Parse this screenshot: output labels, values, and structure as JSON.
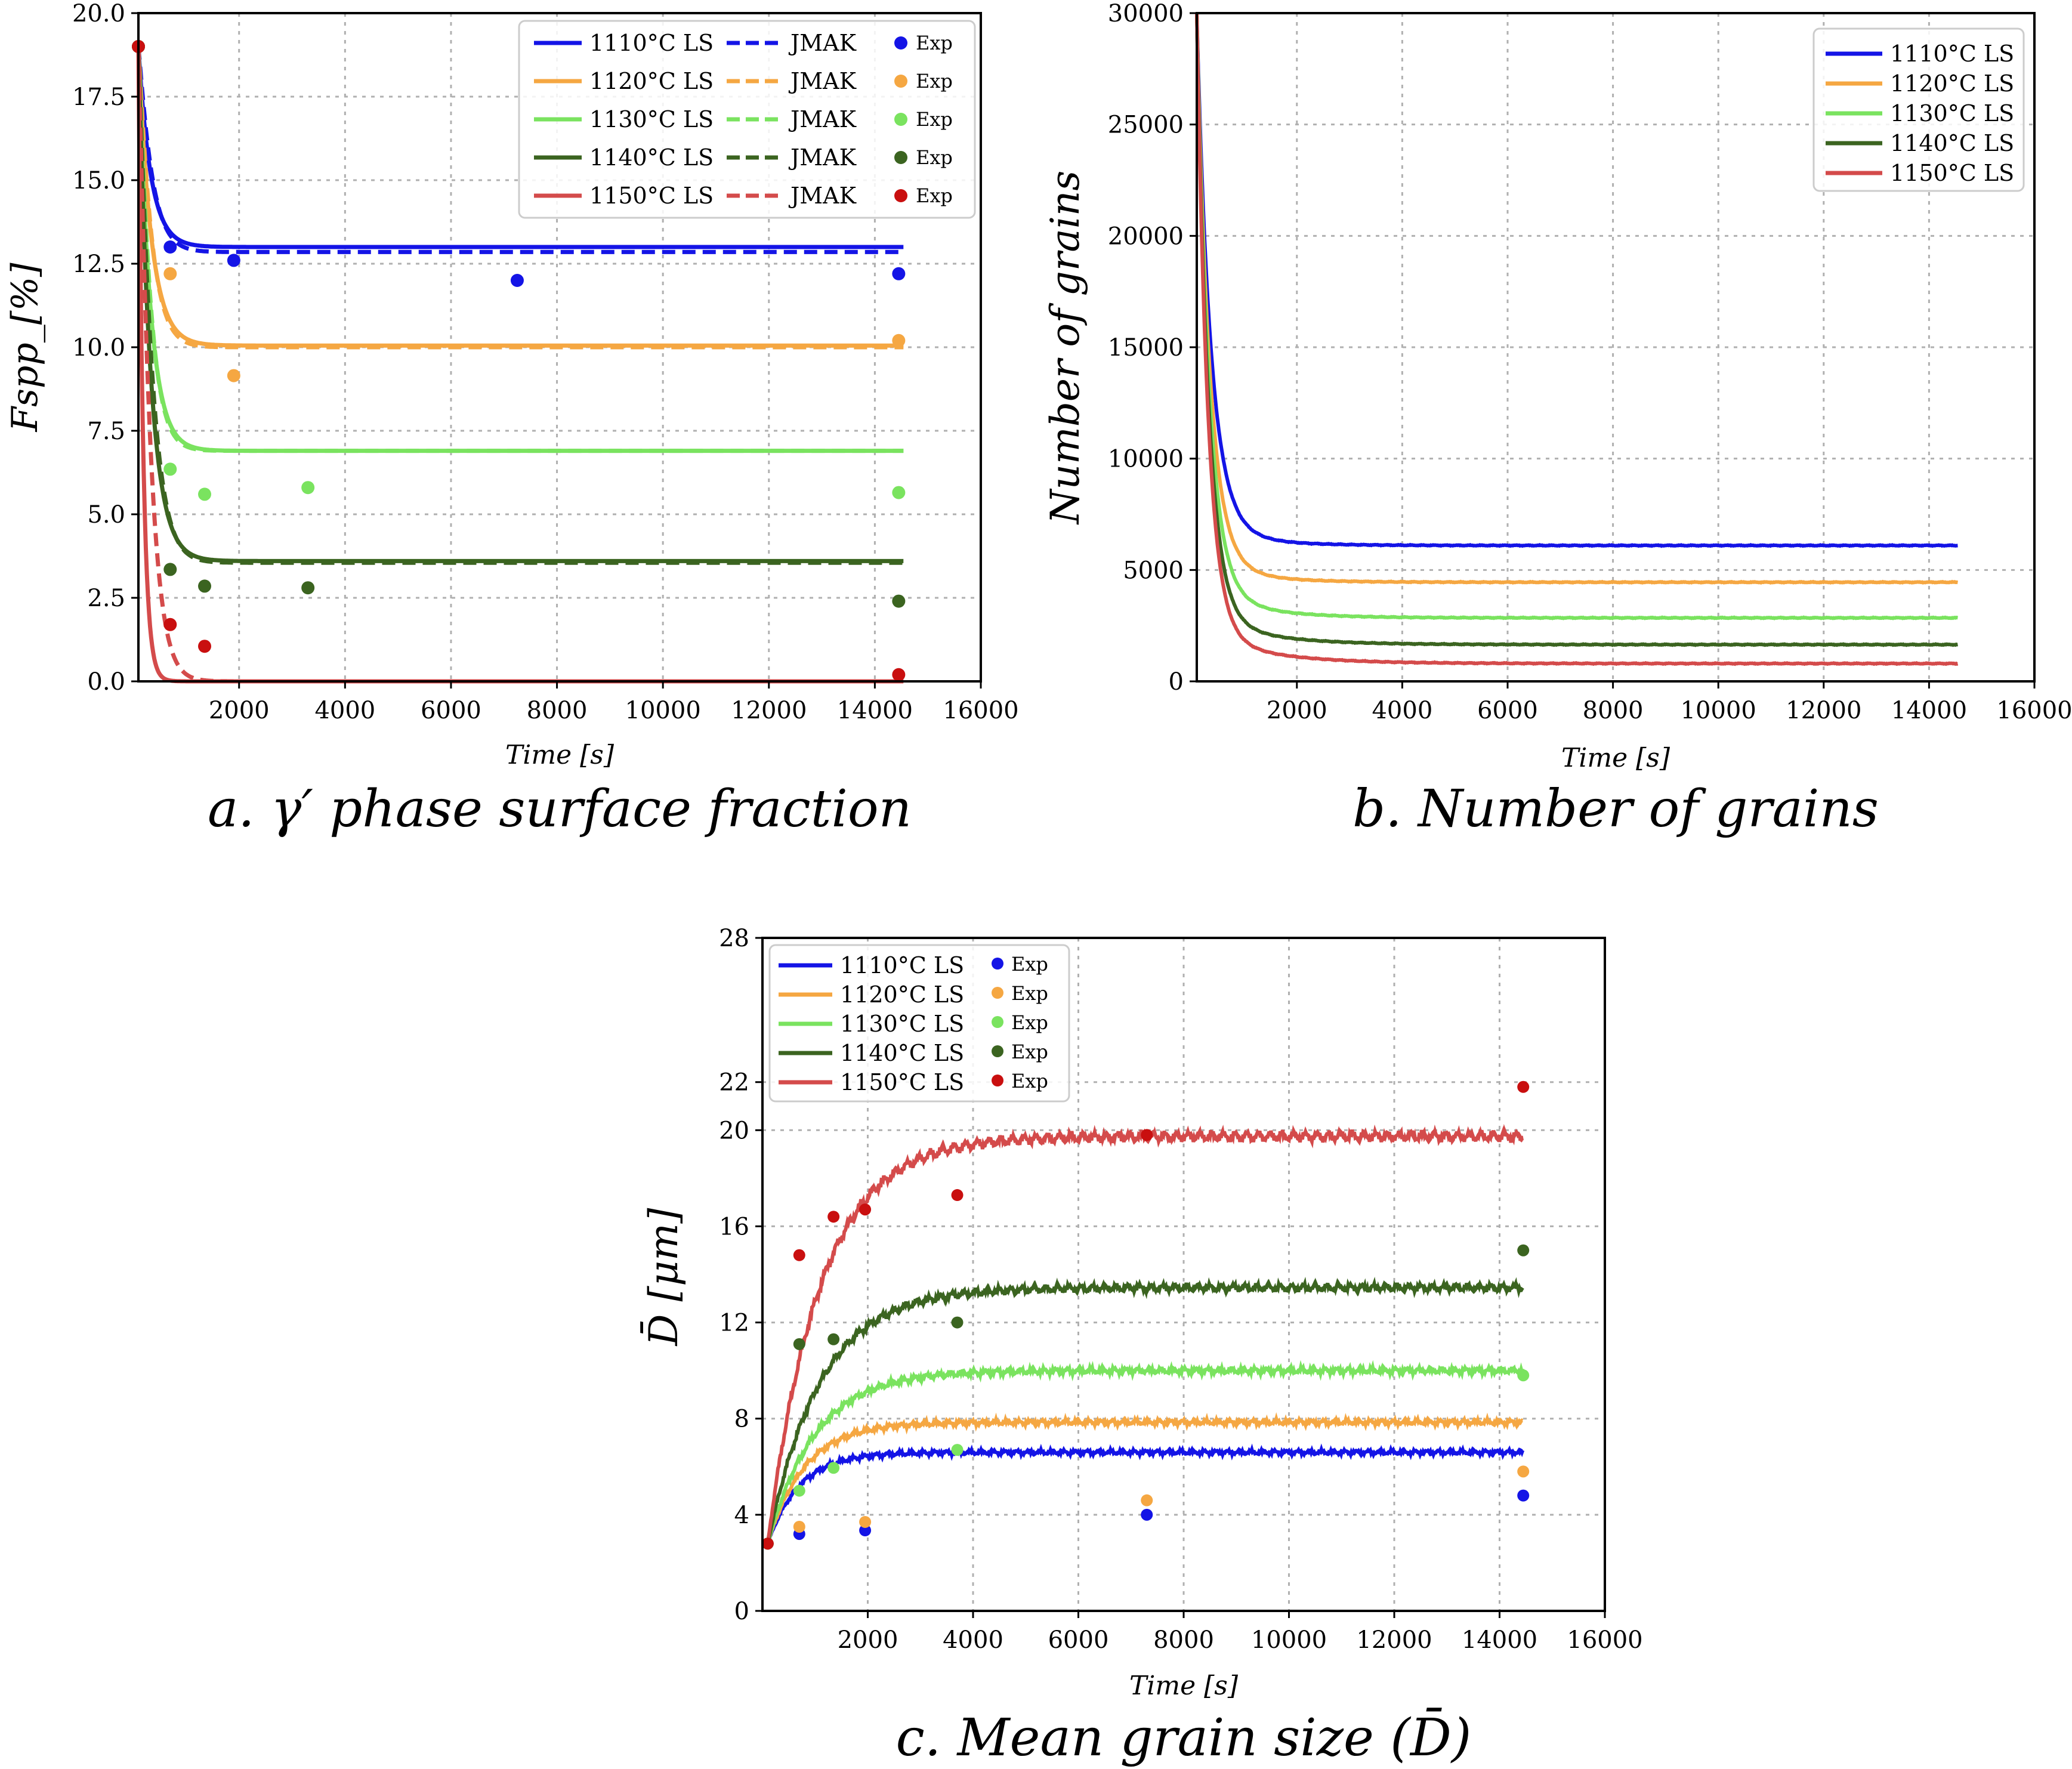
{
  "colors": {
    "1110": "#1414e6",
    "1120": "#f5a742",
    "1130": "#7ae35f",
    "1140": "#3b6420",
    "1150": "#d44b4b",
    "1150_exp": "#c90f0f"
  },
  "chart_data": [
    {
      "id": "a",
      "type": "line",
      "caption": "a. γ′ phase surface fraction",
      "xlabel": "Time [s]",
      "ylabel": "Fspp_[%]",
      "xlim": [
        100,
        16000
      ],
      "ylim": [
        0,
        20
      ],
      "xticks": [
        2000,
        4000,
        6000,
        8000,
        10000,
        12000,
        14000,
        16000
      ],
      "yticks": [
        0.0,
        2.5,
        5.0,
        7.5,
        10.0,
        12.5,
        15.0,
        17.5,
        20.0
      ],
      "ytick_labels": [
        "0.0",
        "2.5",
        "5.0",
        "7.5",
        "10.0",
        "12.5",
        "15.0",
        "17.5",
        "20.0"
      ],
      "xtick_labels": [
        "2000",
        "4000",
        "6000",
        "8000",
        "10000",
        "12000",
        "14000",
        "16000"
      ],
      "legend_position": "top-right",
      "series": [
        {
          "key": "1110",
          "name": "1110°C LS",
          "jmak_name": "JMAK",
          "exp_name": "Exp",
          "start": 19.0,
          "plateau": 13.0,
          "tau": 230,
          "jmak_plateau": 12.85,
          "jmak_tau": 260,
          "exp": [
            [
              100,
              19.0
            ],
            [
              700,
              13.0
            ],
            [
              1900,
              12.6
            ],
            [
              7250,
              12.0
            ],
            [
              14450,
              12.2
            ]
          ]
        },
        {
          "key": "1120",
          "name": "1120°C LS",
          "jmak_name": "JMAK",
          "exp_name": "Exp",
          "start": 19.0,
          "plateau": 10.05,
          "tau": 240,
          "jmak_plateau": 10.0,
          "jmak_tau": 250,
          "exp": [
            [
              100,
              19.0
            ],
            [
              700,
              12.2
            ],
            [
              1900,
              9.15
            ],
            [
              14450,
              10.2
            ]
          ]
        },
        {
          "key": "1130",
          "name": "1130°C LS",
          "jmak_name": "JMAK",
          "exp_name": "Exp",
          "start": 19.0,
          "plateau": 6.9,
          "tau": 220,
          "jmak_plateau": 6.9,
          "jmak_tau": 230,
          "exp": [
            [
              100,
              19.0
            ],
            [
              700,
              6.35
            ],
            [
              1350,
              5.6
            ],
            [
              3300,
              5.8
            ],
            [
              14450,
              5.65
            ]
          ]
        },
        {
          "key": "1140",
          "name": "1140°C LS",
          "jmak_name": "JMAK",
          "exp_name": "Exp",
          "start": 19.0,
          "plateau": 3.6,
          "tau": 230,
          "jmak_plateau": 3.55,
          "jmak_tau": 260,
          "exp": [
            [
              100,
              19.0
            ],
            [
              700,
              3.35
            ],
            [
              1350,
              2.85
            ],
            [
              3300,
              2.8
            ],
            [
              14450,
              2.4
            ]
          ]
        },
        {
          "key": "1150",
          "name": "1150°C LS",
          "jmak_name": "JMAK",
          "exp_name": "Exp",
          "start": 19.0,
          "plateau": 0.0,
          "tau": 90,
          "jmak_plateau": 0.0,
          "jmak_tau": 230,
          "exp": [
            [
              100,
              19.0
            ],
            [
              700,
              1.7
            ],
            [
              1350,
              1.05
            ],
            [
              14450,
              0.2
            ]
          ]
        }
      ]
    },
    {
      "id": "b",
      "type": "line",
      "caption": "b. Number of grains",
      "xlabel": "Time [s]",
      "ylabel": "Number of grains",
      "xlim": [
        100,
        16000
      ],
      "ylim": [
        0,
        30000
      ],
      "xticks": [
        2000,
        4000,
        6000,
        8000,
        10000,
        12000,
        14000,
        16000
      ],
      "yticks": [
        0,
        5000,
        10000,
        15000,
        20000,
        25000,
        30000
      ],
      "ytick_labels": [
        "0",
        "5000",
        "10000",
        "15000",
        "20000",
        "25000",
        "30000"
      ],
      "xtick_labels": [
        "2000",
        "4000",
        "6000",
        "8000",
        "10000",
        "12000",
        "14000",
        "16000"
      ],
      "legend_position": "top-right",
      "x_end": 14550,
      "series": [
        {
          "key": "1110",
          "name": "1110°C LS",
          "start": 30000,
          "plateau": 6100,
          "tau": 260,
          "tau2": 900,
          "frac2": 0.04
        },
        {
          "key": "1120",
          "name": "1120°C LS",
          "start": 30000,
          "plateau": 4450,
          "tau": 240,
          "tau2": 900,
          "frac2": 0.04
        },
        {
          "key": "1130",
          "name": "1130°C LS",
          "start": 30000,
          "plateau": 2850,
          "tau": 230,
          "tau2": 1000,
          "frac2": 0.05
        },
        {
          "key": "1140",
          "name": "1140°C LS",
          "start": 30000,
          "plateau": 1650,
          "tau": 220,
          "tau2": 1100,
          "frac2": 0.05
        },
        {
          "key": "1150",
          "name": "1150°C LS",
          "start": 30000,
          "plateau": 800,
          "tau": 210,
          "tau2": 1200,
          "frac2": 0.05
        }
      ]
    },
    {
      "id": "c",
      "type": "line",
      "caption": "c. Mean grain size (D̄)",
      "xlabel": "Time [s]",
      "ylabel": "D̄ [μm]",
      "xlim": [
        0,
        16000
      ],
      "ylim": [
        0,
        28
      ],
      "xticks": [
        2000,
        4000,
        6000,
        8000,
        10000,
        12000,
        14000,
        16000
      ],
      "yticks": [
        0,
        4,
        8,
        12,
        16,
        20,
        22,
        28
      ],
      "ytick_labels": [
        "0",
        "4",
        "8",
        "12",
        "16",
        "20",
        "22",
        "28"
      ],
      "xtick_labels": [
        "2000",
        "4000",
        "6000",
        "8000",
        "10000",
        "12000",
        "14000",
        "16000"
      ],
      "legend_position": "top-left",
      "x_start": 100,
      "x_end": 14450,
      "series": [
        {
          "key": "1110",
          "name": "1110°C LS",
          "exp_name": "Exp",
          "start": 2.8,
          "plateau": 6.6,
          "tau": 600,
          "exp": [
            [
              100,
              2.8
            ],
            [
              700,
              3.2
            ],
            [
              1950,
              3.35
            ],
            [
              7300,
              4.0
            ],
            [
              14450,
              4.8
            ]
          ]
        },
        {
          "key": "1120",
          "name": "1120°C LS",
          "exp_name": "Exp",
          "start": 2.8,
          "plateau": 7.85,
          "tau": 700,
          "exp": [
            [
              100,
              2.8
            ],
            [
              700,
              3.5
            ],
            [
              1950,
              3.7
            ],
            [
              7300,
              4.6
            ],
            [
              14450,
              5.8
            ]
          ]
        },
        {
          "key": "1130",
          "name": "1130°C LS",
          "exp_name": "Exp",
          "start": 2.8,
          "plateau": 10.0,
          "tau": 900,
          "exp": [
            [
              100,
              2.8
            ],
            [
              700,
              5.0
            ],
            [
              1350,
              5.95
            ],
            [
              3700,
              6.7
            ],
            [
              14450,
              9.8
            ]
          ]
        },
        {
          "key": "1140",
          "name": "1140°C LS",
          "exp_name": "Exp",
          "start": 2.8,
          "plateau": 13.45,
          "tau": 1000,
          "exp": [
            [
              100,
              2.8
            ],
            [
              700,
              11.1
            ],
            [
              1350,
              11.3
            ],
            [
              3700,
              12.0
            ],
            [
              14450,
              15.0
            ]
          ]
        },
        {
          "key": "1150",
          "name": "1150°C LS",
          "exp_name": "Exp",
          "start": 2.8,
          "plateau": 19.75,
          "tau": 1000,
          "exp": [
            [
              100,
              2.8
            ],
            [
              700,
              14.8
            ],
            [
              1350,
              16.4
            ],
            [
              1950,
              16.7
            ],
            [
              3700,
              17.3
            ],
            [
              7300,
              19.8
            ],
            [
              14450,
              21.8
            ]
          ]
        }
      ]
    }
  ]
}
